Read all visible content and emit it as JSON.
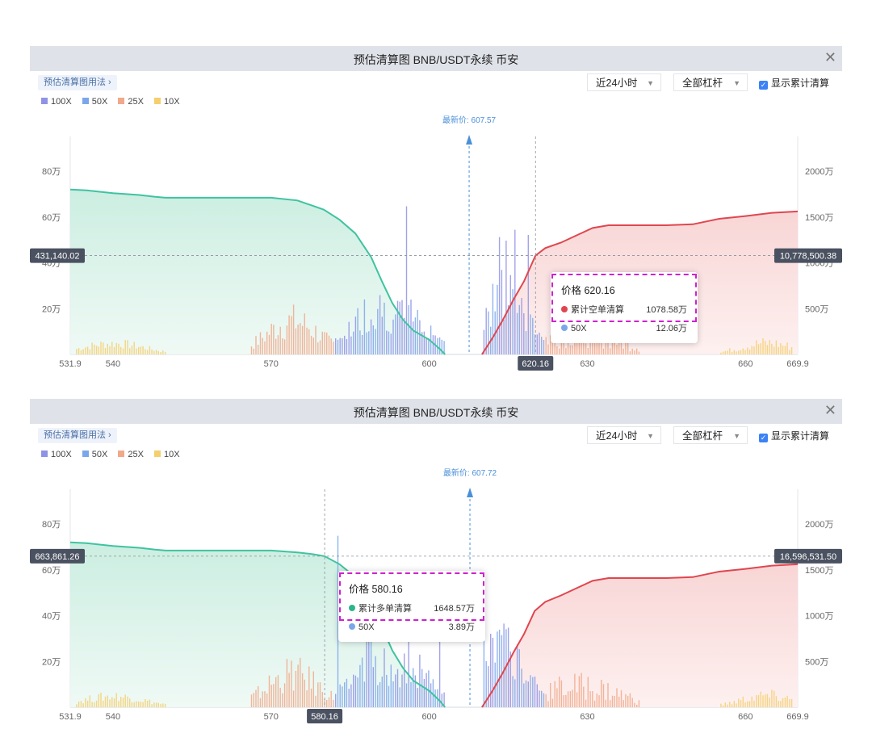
{
  "panels": [
    {
      "title": "预估清算图 BNB/USDT永续 币安",
      "close_icon": "✕",
      "howto_label": "预估清算图用法",
      "time_filter": "近24小时",
      "leverage_filter": "全部杠杆",
      "cumulative_label": "显示累计清算",
      "cumulative_checked": true,
      "legend": [
        {
          "name": "100X",
          "color": "#8f93e6"
        },
        {
          "name": "50X",
          "color": "#7ba7ea"
        },
        {
          "name": "25X",
          "color": "#f0a98a"
        },
        {
          "name": "10X",
          "color": "#f5cf6f"
        }
      ],
      "latest_price_label": "最新价: 607.57",
      "left_marker": "431,140.02",
      "right_marker": "10,778,500.38",
      "crosshair_price_label": "620.16",
      "tooltip": {
        "price": "价格 620.16",
        "cum_label": "累计空单清算",
        "cum_value": "1078.58万",
        "cum_color": "#e0464f",
        "series_label": "50X",
        "series_value": "12.06万",
        "series_color": "#7ba7ea"
      }
    },
    {
      "title": "预估清算图 BNB/USDT永续 币安",
      "close_icon": "✕",
      "howto_label": "预估清算图用法",
      "time_filter": "近24小时",
      "leverage_filter": "全部杠杆",
      "cumulative_label": "显示累计清算",
      "cumulative_checked": true,
      "legend": [
        {
          "name": "100X",
          "color": "#8f93e6"
        },
        {
          "name": "50X",
          "color": "#7ba7ea"
        },
        {
          "name": "25X",
          "color": "#f0a98a"
        },
        {
          "name": "10X",
          "color": "#f5cf6f"
        }
      ],
      "latest_price_label": "最新价: 607.72",
      "left_marker": "663,861.26",
      "right_marker": "16,596,531.50",
      "crosshair_price_label": "580.16",
      "tooltip": {
        "price": "价格 580.16",
        "cum_label": "累计多单清算",
        "cum_value": "1648.57万",
        "cum_color": "#2bb58a",
        "series_label": "50X",
        "series_value": "3.89万",
        "series_color": "#7ba7ea"
      }
    }
  ],
  "chart_data": [
    {
      "type": "bar",
      "x_label": "",
      "y_label": "",
      "xlim": [
        531.9,
        669.9
      ],
      "x_ticks": [
        "531.9",
        "540",
        "570",
        "600",
        "630",
        "660",
        "669.9"
      ],
      "y_left_ticks": [
        "20万",
        "40万",
        "60万",
        "80万"
      ],
      "y_left_range": [
        0,
        80
      ],
      "y_right_ticks": [
        "500万",
        "1000万",
        "1500万",
        "2000万"
      ],
      "y_right_range": [
        0,
        2000
      ],
      "latest_price": 607.57,
      "crosshair_price": 620.16,
      "series": [
        {
          "name": "累计多单清算",
          "color": "#3fc3a0",
          "x": [
            531.9,
            535,
            540,
            545,
            548,
            550,
            560,
            570,
            575,
            578,
            580,
            583,
            586,
            589,
            591,
            593,
            595,
            597,
            600,
            602,
            603
          ],
          "values": [
            1800,
            1790,
            1760,
            1740,
            1720,
            1710,
            1710,
            1710,
            1680,
            1620,
            1580,
            1470,
            1320,
            1060,
            800,
            560,
            380,
            260,
            160,
            60,
            0
          ]
        },
        {
          "name": "累计空单清算",
          "color": "#e0464f",
          "x": [
            610,
            612,
            614,
            616,
            618,
            620.16,
            622,
            625,
            628,
            631,
            634,
            640,
            645,
            650,
            655,
            660,
            665,
            669.9
          ],
          "values": [
            0,
            180,
            380,
            600,
            800,
            1078.58,
            1160,
            1220,
            1300,
            1380,
            1410,
            1410,
            1410,
            1420,
            1480,
            1510,
            1545,
            1560
          ]
        }
      ]
    },
    {
      "type": "bar",
      "x_label": "",
      "y_label": "",
      "xlim": [
        531.9,
        669.9
      ],
      "x_ticks": [
        "531.9",
        "540",
        "570",
        "600",
        "630",
        "660",
        "669.9"
      ],
      "y_left_ticks": [
        "20万",
        "40万",
        "60万",
        "80万"
      ],
      "y_left_range": [
        0,
        80
      ],
      "y_right_ticks": [
        "500万",
        "1000万",
        "1500万",
        "2000万"
      ],
      "y_right_range": [
        0,
        2000
      ],
      "latest_price": 607.72,
      "crosshair_price": 580.16,
      "series": [
        {
          "name": "累计多单清算",
          "color": "#3fc3a0",
          "x": [
            531.9,
            535,
            540,
            545,
            548,
            550,
            560,
            570,
            575,
            578,
            580.16,
            583,
            586,
            589,
            591,
            593,
            595,
            597,
            600,
            602,
            603
          ],
          "values": [
            1800,
            1790,
            1760,
            1740,
            1720,
            1710,
            1710,
            1710,
            1690,
            1670,
            1648.57,
            1560,
            1420,
            1160,
            880,
            620,
            430,
            290,
            180,
            70,
            0
          ]
        },
        {
          "name": "累计空单清算",
          "color": "#e0464f",
          "x": [
            610,
            612,
            614,
            616,
            618,
            620,
            622,
            625,
            628,
            631,
            634,
            640,
            645,
            650,
            655,
            660,
            665,
            669.9
          ],
          "values": [
            0,
            180,
            380,
            600,
            800,
            1050,
            1150,
            1220,
            1300,
            1380,
            1410,
            1410,
            1410,
            1420,
            1480,
            1510,
            1545,
            1560
          ]
        }
      ]
    }
  ]
}
